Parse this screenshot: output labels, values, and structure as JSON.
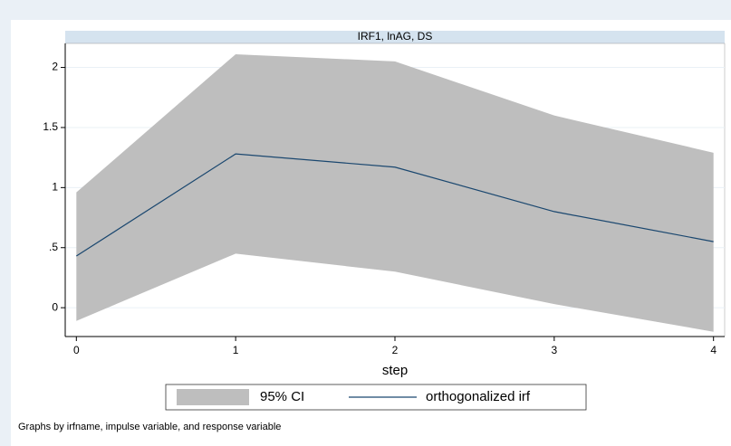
{
  "chart_data": {
    "type": "line",
    "subtitle": "IRF1, lnAG, DS",
    "xlabel": "step",
    "note": "Graphs by irfname, impulse variable, and response variable",
    "x": [
      0,
      1,
      2,
      3,
      4
    ],
    "series": [
      {
        "name": "95% CI",
        "color": "#bebebe",
        "lower": [
          -0.11,
          0.45,
          0.3,
          0.03,
          -0.2
        ],
        "upper": [
          0.96,
          2.11,
          2.05,
          1.6,
          1.29
        ]
      },
      {
        "name": "orthogonalized irf",
        "color": "#1a476f",
        "values": [
          0.43,
          1.28,
          1.17,
          0.8,
          0.55
        ]
      }
    ],
    "xlim": [
      -0.07,
      4.07
    ],
    "xticks": [
      0,
      1,
      2,
      3,
      4
    ],
    "ylim": [
      -0.24,
      2.2
    ],
    "yticks": [
      0,
      {
        "value": 0.5,
        "label": ".5"
      },
      1,
      1.5,
      2
    ],
    "grid": true
  }
}
